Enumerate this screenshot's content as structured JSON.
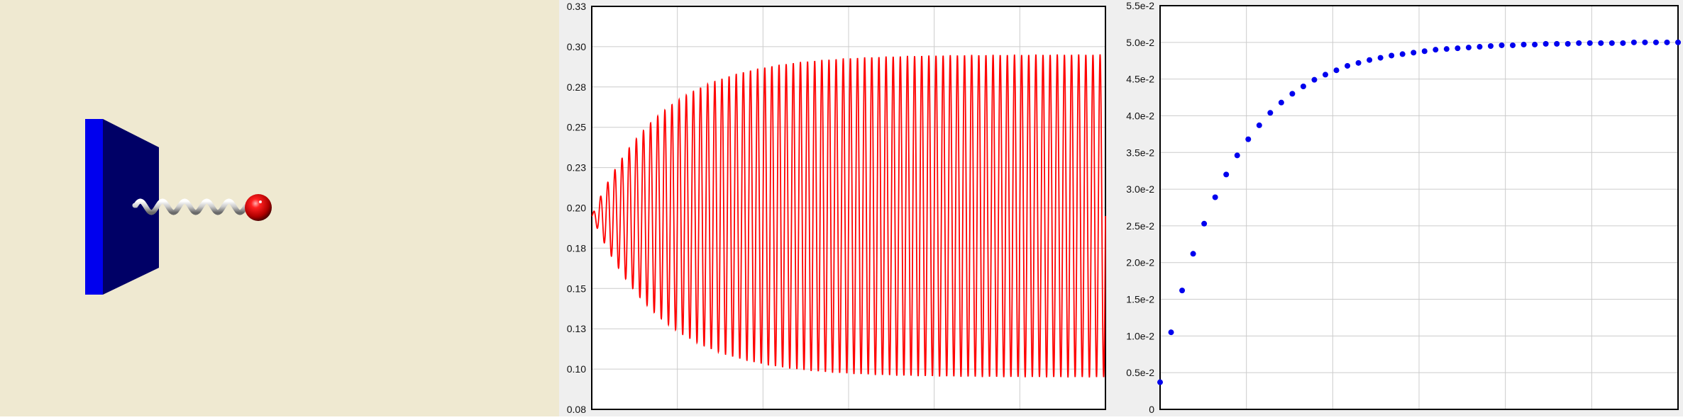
{
  "colors": {
    "scene_background": "#efe9d1",
    "wall_front": "#0000ee",
    "wall_side": "#000066",
    "spring": "#c8c8c8",
    "ball": "#dd0000",
    "oscillation_line": "#ff0000",
    "amplitude_points": "#0000ee",
    "grid": "#cccccc",
    "plot_background": "#ffffff",
    "panel_background": "#efefef"
  },
  "scene": {
    "icons": [
      "wall-icon",
      "spring-icon",
      "ball-icon"
    ]
  },
  "chart_data": [
    {
      "type": "line",
      "title": "",
      "xlabel": "",
      "ylabel": "",
      "ylim": [
        0.08,
        0.33
      ],
      "y_ticks": [
        "0.33",
        "0.30",
        "0.28",
        "0.25",
        "0.23",
        "0.20",
        "0.18",
        "0.15",
        "0.13",
        "0.10",
        "0.08"
      ],
      "x_ticks": [],
      "grid": true,
      "series": [
        {
          "equilibrium": 0.2,
          "steady_amplitude": 0.1,
          "cycles": 72,
          "time_constant_cycles": 9.6,
          "envelope_peaks": [
            0.209,
            0.225,
            0.246,
            0.262,
            0.271,
            0.279,
            0.286,
            0.29,
            0.293,
            0.295,
            0.297,
            0.298,
            0.299,
            0.3
          ]
        }
      ]
    },
    {
      "type": "scatter",
      "title": "",
      "xlabel": "",
      "ylabel": "",
      "ylim": [
        0,
        0.055
      ],
      "y_ticks": [
        "5.5e-2",
        "5.0e-2",
        "4.5e-2",
        "4.0e-2",
        "3.5e-2",
        "3.0e-2",
        "2.5e-2",
        "2.0e-2",
        "1.5e-2",
        "1.0e-2",
        "0.5e-2",
        "0"
      ],
      "x_ticks": [],
      "grid": true,
      "series": [
        {
          "values": [
            0.0037,
            0.0105,
            0.0162,
            0.0212,
            0.0253,
            0.0289,
            0.032,
            0.0346,
            0.0368,
            0.0387,
            0.0404,
            0.0418,
            0.043,
            0.044,
            0.0449,
            0.0456,
            0.0462,
            0.0468,
            0.0472,
            0.0476,
            0.0479,
            0.0482,
            0.0484,
            0.0486,
            0.0488,
            0.049,
            0.0491,
            0.0492,
            0.0493,
            0.0494,
            0.0495,
            0.0496,
            0.0496,
            0.0497,
            0.0497,
            0.0498,
            0.0498,
            0.0498,
            0.0499,
            0.0499,
            0.0499,
            0.0499,
            0.0499,
            0.05,
            0.05,
            0.05,
            0.05,
            0.05
          ]
        }
      ]
    }
  ]
}
